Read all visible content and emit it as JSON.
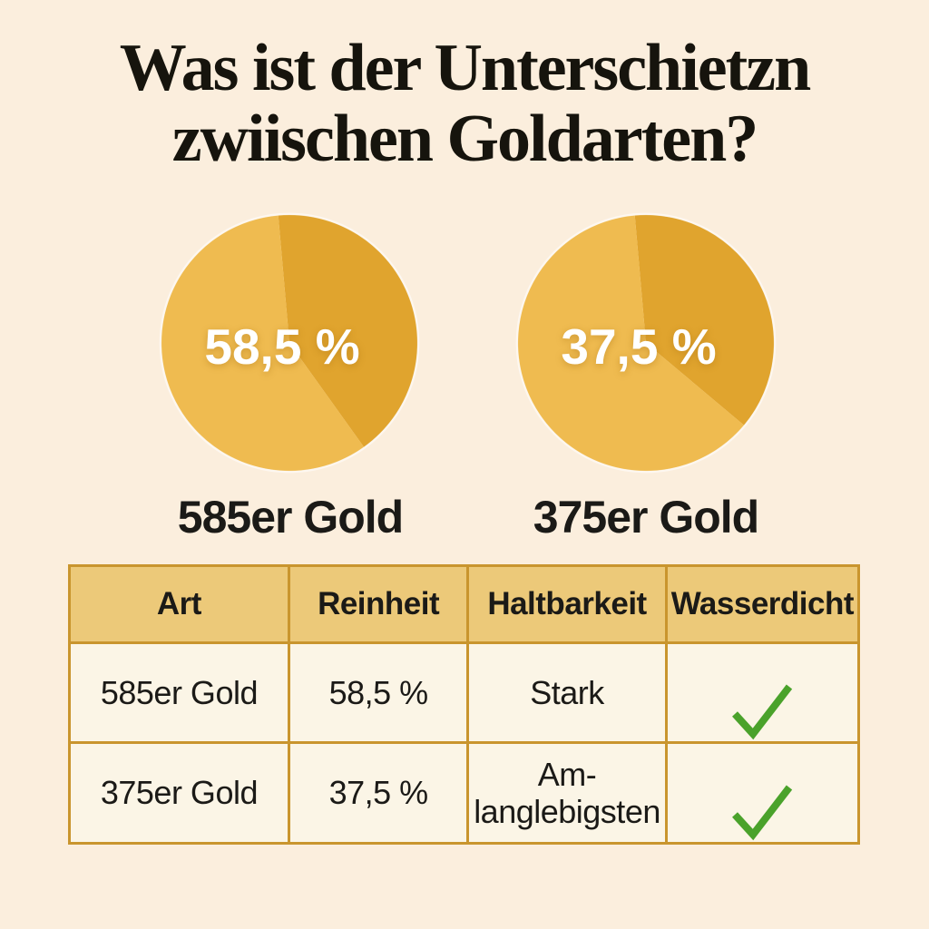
{
  "page": {
    "title": "Was ist der Unterschietzn\nzwiischen Goldarten?",
    "background_color": "#FBEEDD",
    "title_color": "#16140D"
  },
  "pies": [
    {
      "label": "58,5 %",
      "caption": "585er Gold"
    },
    {
      "label": "37,5 %",
      "caption": "375er Gold"
    }
  ],
  "chart_data": [
    {
      "type": "pie",
      "title": "585er Gold",
      "center_label": "58,5 %",
      "start_angle_deg": -5,
      "slices": [
        {
          "name": "segment-dark",
          "value": 41.5,
          "color": "#E0A42E"
        },
        {
          "name": "segment-light",
          "value": 58.5,
          "color": "#EFBB50"
        }
      ],
      "label_color": "#FFFFFF",
      "legend": "none"
    },
    {
      "type": "pie",
      "title": "375er Gold",
      "center_label": "37,5 %",
      "start_angle_deg": -5,
      "slices": [
        {
          "name": "segment-dark",
          "value": 37.5,
          "color": "#E0A42E"
        },
        {
          "name": "segment-light",
          "value": 62.5,
          "color": "#EFBB50"
        }
      ],
      "label_color": "#FFFFFF",
      "legend": "none"
    }
  ],
  "table": {
    "headers": [
      "Art",
      "Reinheit",
      "Haltbarkeit",
      "Wasserdicht"
    ],
    "rows": [
      {
        "cells": [
          "585er Gold",
          "58,5 %",
          "Stark"
        ],
        "wasserdicht_check": true
      },
      {
        "cells": [
          "375er Gold",
          "37,5 %",
          "Am-\nlanglebigsten"
        ],
        "wasserdicht_check": true
      }
    ],
    "header_bg": "#ECC979",
    "cell_bg": "#FBF5E6",
    "border_color": "#C9952E"
  },
  "icons": {
    "check_icon": "✓",
    "check_color": "#4AA22B"
  }
}
